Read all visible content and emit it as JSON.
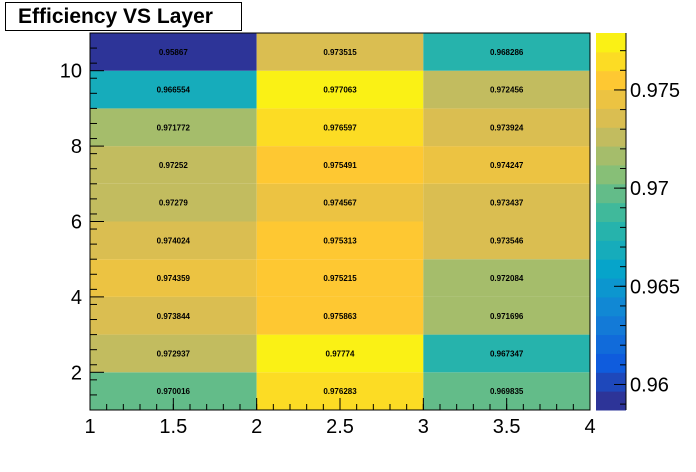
{
  "chart_data": {
    "type": "heatmap",
    "title": "Efficiency VS Layer",
    "xlabel": "",
    "ylabel": "",
    "x_edges": [
      1,
      2,
      3,
      4
    ],
    "y_edges": [
      1,
      2,
      3,
      4,
      5,
      6,
      7,
      8,
      9,
      10,
      11
    ],
    "xlim": [
      1,
      4
    ],
    "ylim": [
      1,
      11
    ],
    "x_ticks": [
      "1",
      "1.5",
      "2",
      "2.5",
      "3",
      "3.5",
      "4"
    ],
    "y_ticks": [
      "2",
      "4",
      "6",
      "8",
      "10"
    ],
    "z_range": [
      0.9587,
      0.9779
    ],
    "colorbar_ticks": [
      "0.96",
      "0.965",
      "0.97",
      "0.975"
    ],
    "colorscale": [
      "#352a87",
      "#0f5cdd",
      "#1481d6",
      "#06a4ca",
      "#2eb7a4",
      "#87bf77",
      "#d1bb59",
      "#fec832",
      "#f9fb0e"
    ],
    "cells": [
      [
        "0.970016",
        "0.976283",
        "0.969835"
      ],
      [
        "0.972937",
        "0.97774",
        "0.967347"
      ],
      [
        "0.973844",
        "0.975863",
        "0.971696"
      ],
      [
        "0.974359",
        "0.975215",
        "0.972084"
      ],
      [
        "0.974024",
        "0.975313",
        "0.973546"
      ],
      [
        "0.97279",
        "0.974567",
        "0.973437"
      ],
      [
        "0.97252",
        "0.975491",
        "0.974247"
      ],
      [
        "0.971772",
        "0.976597",
        "0.973924"
      ],
      [
        "0.966554",
        "0.977063",
        "0.972456"
      ],
      [
        "0.95867",
        "0.973515",
        "0.968286"
      ]
    ]
  }
}
